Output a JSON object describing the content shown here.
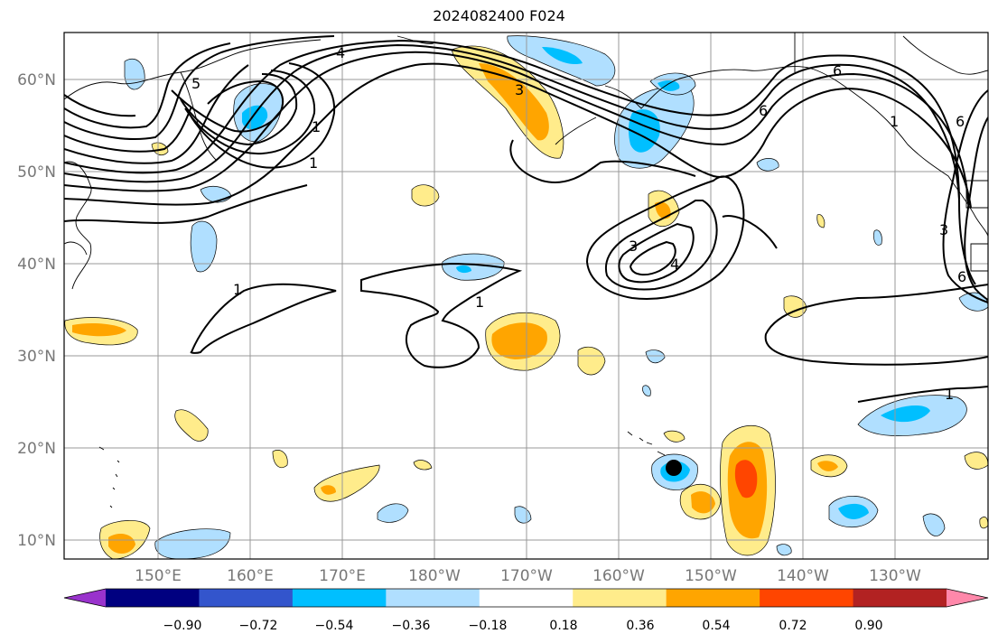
{
  "title": "2024082400 F024",
  "map": {
    "lat_labels": [
      "60°N",
      "50°N",
      "40°N",
      "30°N",
      "20°N",
      "10°N"
    ],
    "lon_labels": [
      "150°E",
      "160°E",
      "170°E",
      "180°W",
      "170°W",
      "160°W",
      "150°W",
      "140°W",
      "130°W"
    ],
    "contour_labels": [
      "4",
      "1",
      "5",
      "3",
      "1",
      "6",
      "6",
      "6",
      "3",
      "1",
      "3",
      "4",
      "1",
      "1",
      "1",
      "6"
    ],
    "marker": "storm-center-dot"
  },
  "colorbar": {
    "ticks": [
      "−0.90",
      "−0.72",
      "−0.54",
      "−0.36",
      "−0.18",
      "0.18",
      "0.36",
      "0.54",
      "0.72",
      "0.90"
    ],
    "colors": [
      "#9933cc",
      "#000080",
      "#3355cc",
      "#00bfff",
      "#b0dfff",
      "#ffffff",
      "#ffec8b",
      "#ffa500",
      "#ff4500",
      "#b22222",
      "#ff88aa"
    ]
  }
}
